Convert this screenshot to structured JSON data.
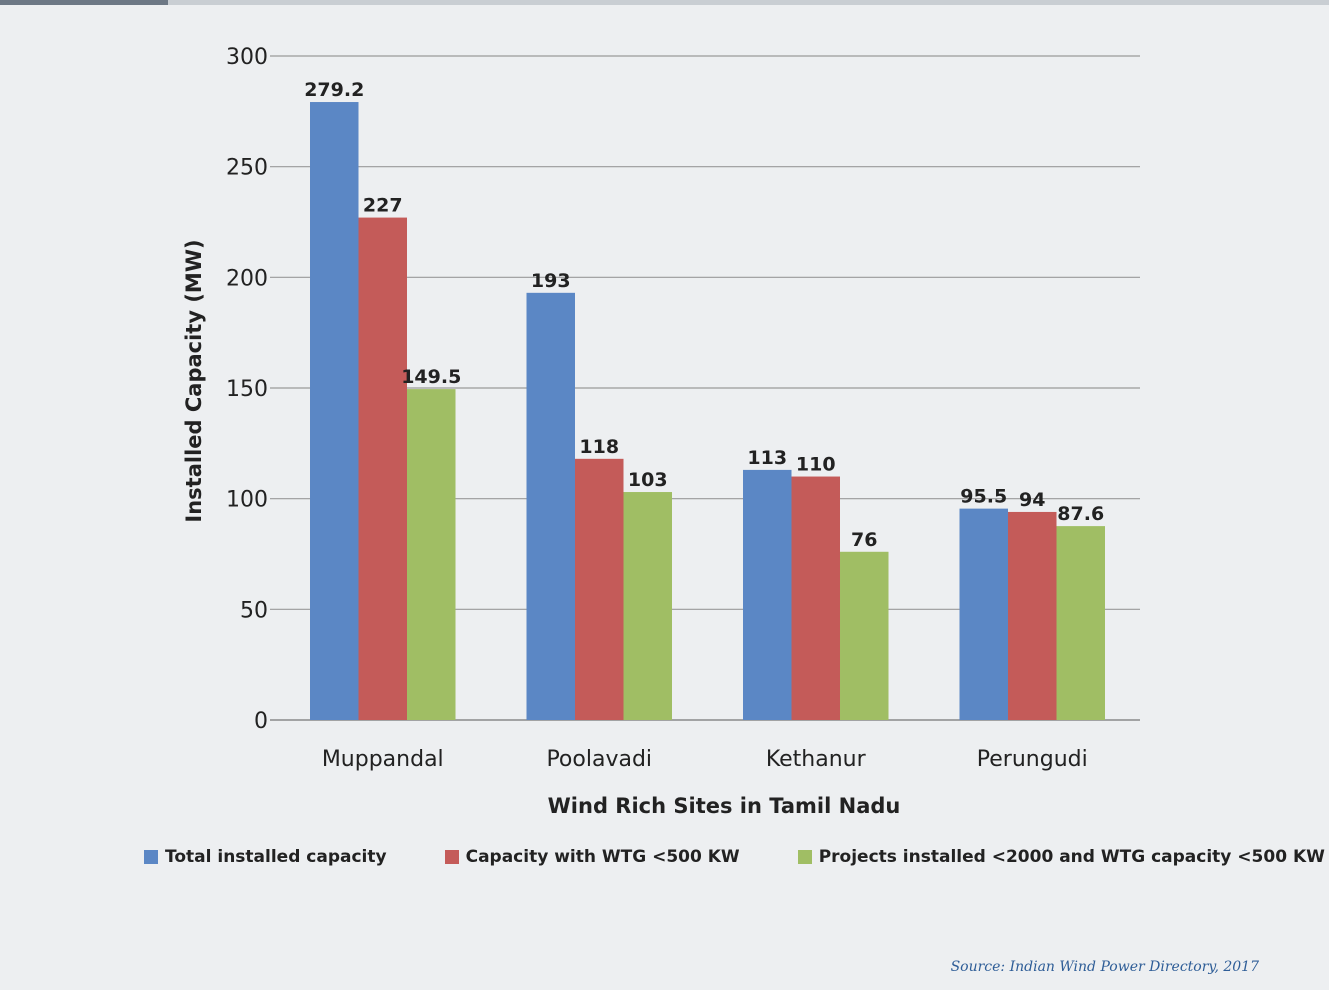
{
  "chart_data": {
    "type": "bar",
    "categories": [
      "Muppandal",
      "Poolavadi",
      "Kethanur",
      "Perungudi"
    ],
    "series": [
      {
        "name": "Total installed capacity",
        "values": [
          279.2,
          193,
          113,
          95.5
        ],
        "labels": [
          "279.2",
          "193",
          "113",
          "95.5"
        ],
        "color": "#5b87c5"
      },
      {
        "name": "Capacity with WTG <500 KW",
        "values": [
          227,
          118,
          110,
          94
        ],
        "labels": [
          "227",
          "118",
          "110",
          "94"
        ],
        "color": "#c45b59"
      },
      {
        "name": "Projects installed <2000 and WTG capacity <500 KW",
        "values": [
          149.5,
          103,
          76,
          87.6
        ],
        "labels": [
          "149.5",
          "103",
          "76",
          "87.6"
        ],
        "color": "#a0be64"
      }
    ],
    "xlabel": "Wind Rich Sites in Tamil Nadu",
    "ylabel": "Installed Capacity (MW)",
    "ylim": [
      0,
      300
    ],
    "yticks": [
      0,
      50,
      100,
      150,
      200,
      250,
      300
    ],
    "ytick_labels": [
      "0",
      "50",
      "100",
      "150",
      "200",
      "250",
      "300"
    ],
    "grid": true,
    "legend_position": "bottom"
  },
  "source": "Source: Indian Wind Power Directory, 2017"
}
